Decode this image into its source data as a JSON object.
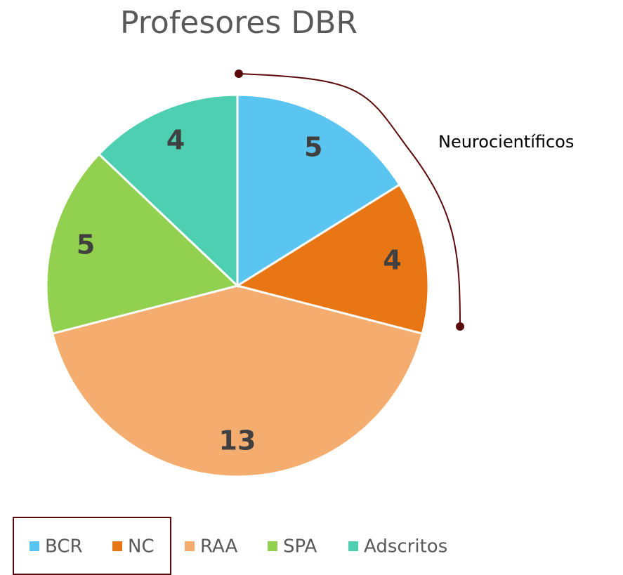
{
  "chart_data": {
    "type": "pie",
    "title": "Profesores DBR",
    "categories": [
      "BCR",
      "NC",
      "RAA",
      "SPA",
      "Adscritos"
    ],
    "values": [
      5,
      4,
      13,
      5,
      4
    ],
    "colors": [
      "#5bc5f2",
      "#e97614",
      "#f4ad6f",
      "#92d050",
      "#4ecfb2"
    ],
    "annotation": "Neurocientíficos",
    "legend": "bottom"
  }
}
